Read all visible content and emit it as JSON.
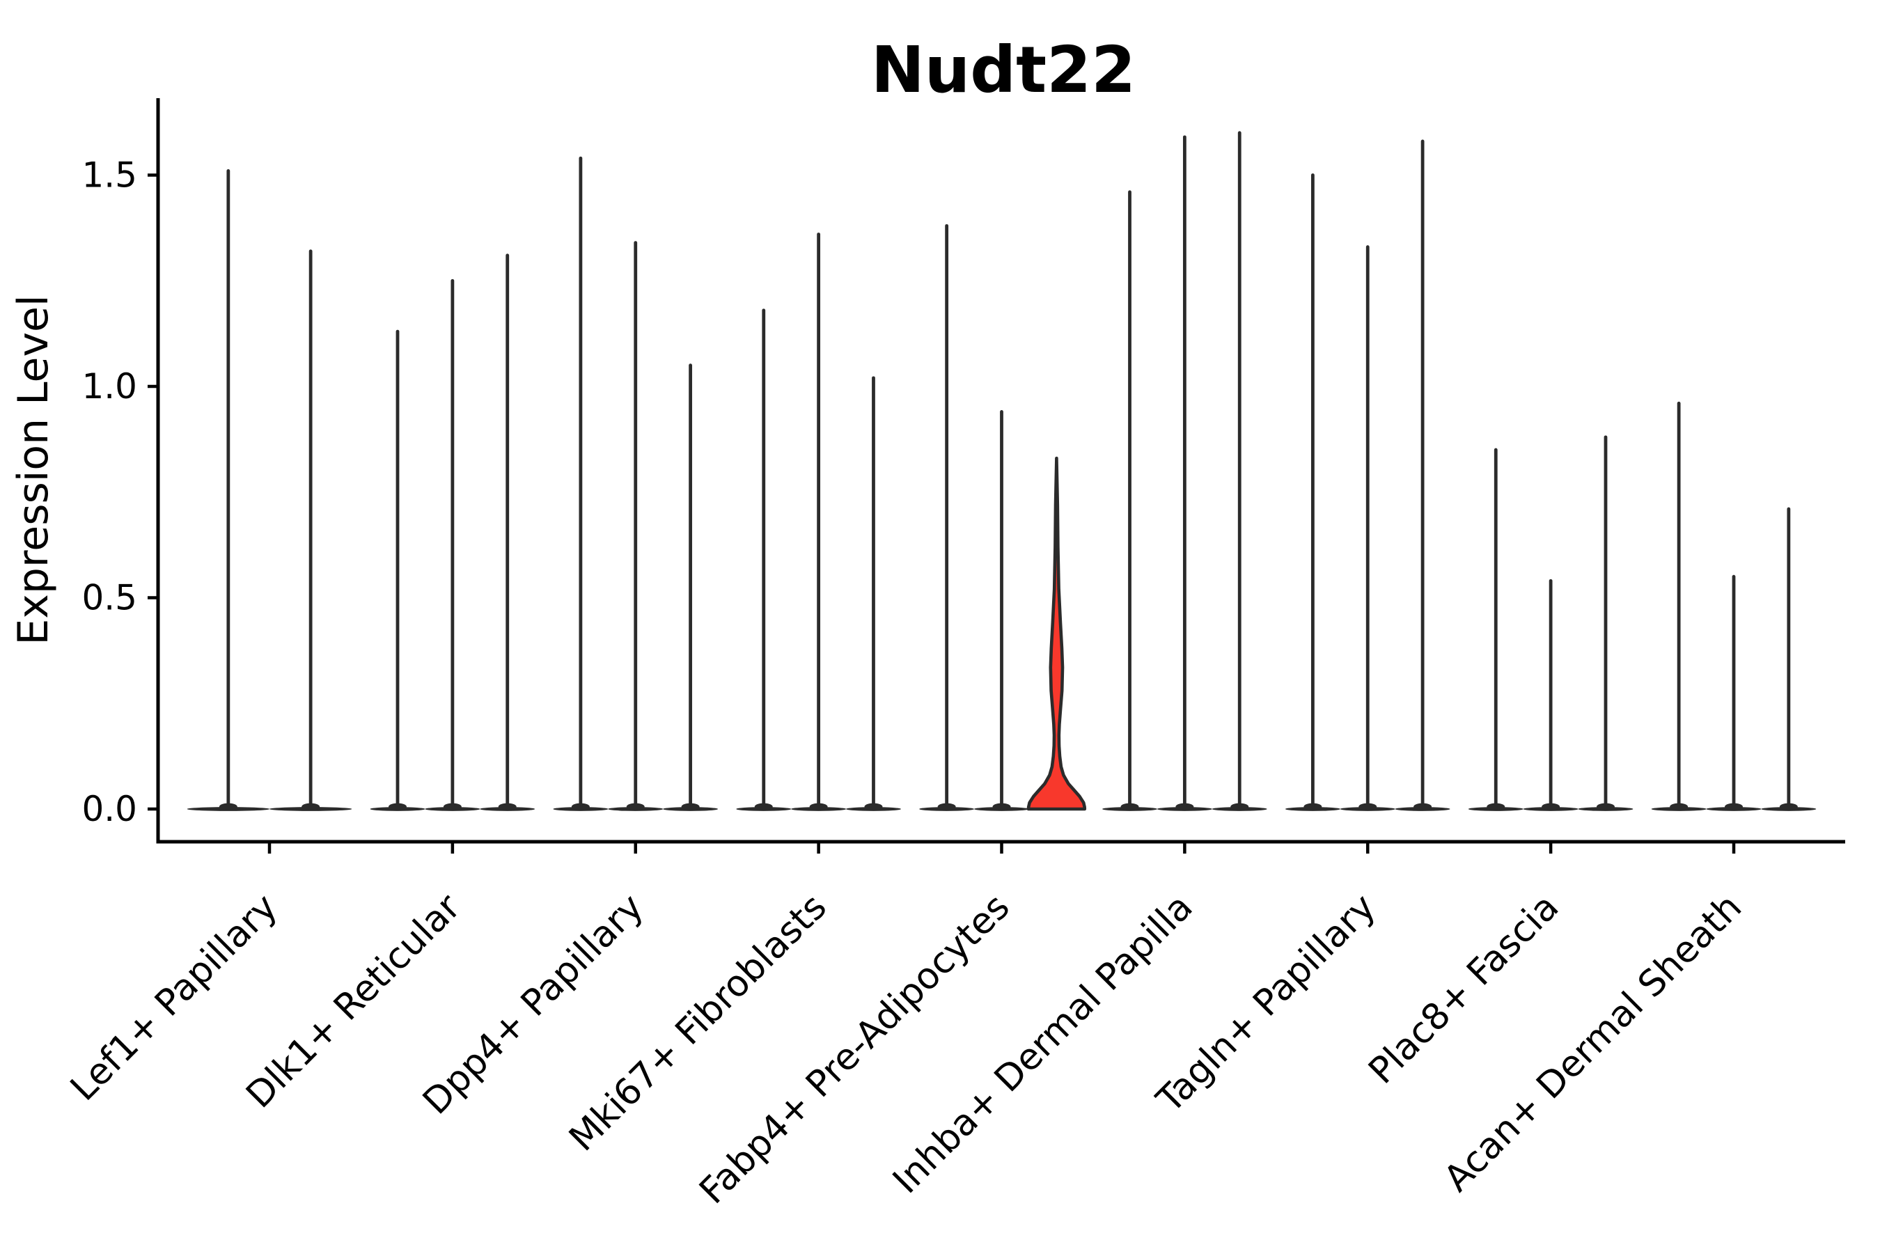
{
  "title": "Nudt22",
  "y_axis": {
    "label": "Expression Level",
    "tick_labels": [
      "0.0",
      "0.5",
      "1.0",
      "1.5"
    ]
  },
  "chart_data": {
    "type": "violin",
    "title": "Nudt22",
    "xlabel": "",
    "ylabel": "Expression Level",
    "ylim": [
      0,
      1.66
    ],
    "ytick_values": [
      0.0,
      0.5,
      1.0,
      1.5
    ],
    "ytick_labels": [
      "0.0",
      "0.5",
      "1.0",
      "1.5"
    ],
    "grid": false,
    "legend_position": "none",
    "categories": [
      "Lef1+ Papillary",
      "Dlk1+ Reticular",
      "Dpp4+ Papillary",
      "Mki67+ Fibroblasts",
      "Fabp4+ Pre-Adipocytes",
      "Inhba+ Dermal Papilla",
      "Tagln+ Papillary",
      "Plac8+ Fascia",
      "Acan+ Dermal Sheath"
    ],
    "series_note": "Each category holds thin violins: nearly all density at 0 (flat base) with a thin spike to the max expression value. One violin (Fabp4+ Pre-Adipocytes, 3rd) is red-filled with visible width.",
    "series": [
      {
        "category": "Lef1+ Papillary",
        "violins": [
          {
            "peak": 1.51
          },
          {
            "peak": 1.32
          }
        ]
      },
      {
        "category": "Dlk1+ Reticular",
        "violins": [
          {
            "peak": 1.13
          },
          {
            "peak": 1.25
          },
          {
            "peak": 1.31
          }
        ]
      },
      {
        "category": "Dpp4+ Papillary",
        "violins": [
          {
            "peak": 1.54
          },
          {
            "peak": 1.34
          },
          {
            "peak": 1.05
          }
        ]
      },
      {
        "category": "Mki67+ Fibroblasts",
        "violins": [
          {
            "peak": 1.18
          },
          {
            "peak": 1.36
          },
          {
            "peak": 1.02
          }
        ]
      },
      {
        "category": "Fabp4+ Pre-Adipocytes",
        "violins": [
          {
            "peak": 1.38
          },
          {
            "peak": 0.94
          },
          {
            "peak": 0.83,
            "highlight": true,
            "profile": [
              [
                0.83,
                0
              ],
              [
                0.72,
                1.4
              ],
              [
                0.62,
                2.0
              ],
              [
                0.52,
                3.2
              ],
              [
                0.44,
                5.6
              ],
              [
                0.38,
                7.6
              ],
              [
                0.335,
                8.6
              ],
              [
                0.28,
                7.8
              ],
              [
                0.235,
                5.6
              ],
              [
                0.2,
                4.0
              ],
              [
                0.175,
                3.4
              ],
              [
                0.15,
                3.6
              ],
              [
                0.125,
                4.6
              ],
              [
                0.1,
                6.5
              ],
              [
                0.08,
                10
              ],
              [
                0.06,
                17
              ],
              [
                0.045,
                25
              ],
              [
                0.03,
                33
              ],
              [
                0.015,
                38.8
              ],
              [
                0.005,
                40.2
              ],
              [
                0,
                40.4
              ]
            ]
          }
        ]
      },
      {
        "category": "Inhba+ Dermal Papilla",
        "violins": [
          {
            "peak": 1.46
          },
          {
            "peak": 1.59
          },
          {
            "peak": 1.6
          }
        ]
      },
      {
        "category": "Tagln+ Papillary",
        "violins": [
          {
            "peak": 1.5
          },
          {
            "peak": 1.33
          },
          {
            "peak": 1.58
          }
        ]
      },
      {
        "category": "Plac8+ Fascia",
        "violins": [
          {
            "peak": 0.85
          },
          {
            "peak": 0.54
          },
          {
            "peak": 0.88
          }
        ]
      },
      {
        "category": "Acan+ Dermal Sheath",
        "violins": [
          {
            "peak": 0.96
          },
          {
            "peak": 0.55
          },
          {
            "peak": 0.71
          }
        ]
      }
    ]
  },
  "colors": {
    "background": "#ffffff",
    "axis": "#000000",
    "violin_stroke": "#2b2b2b",
    "highlight_fill": "#f8382c",
    "text": "#000000"
  }
}
